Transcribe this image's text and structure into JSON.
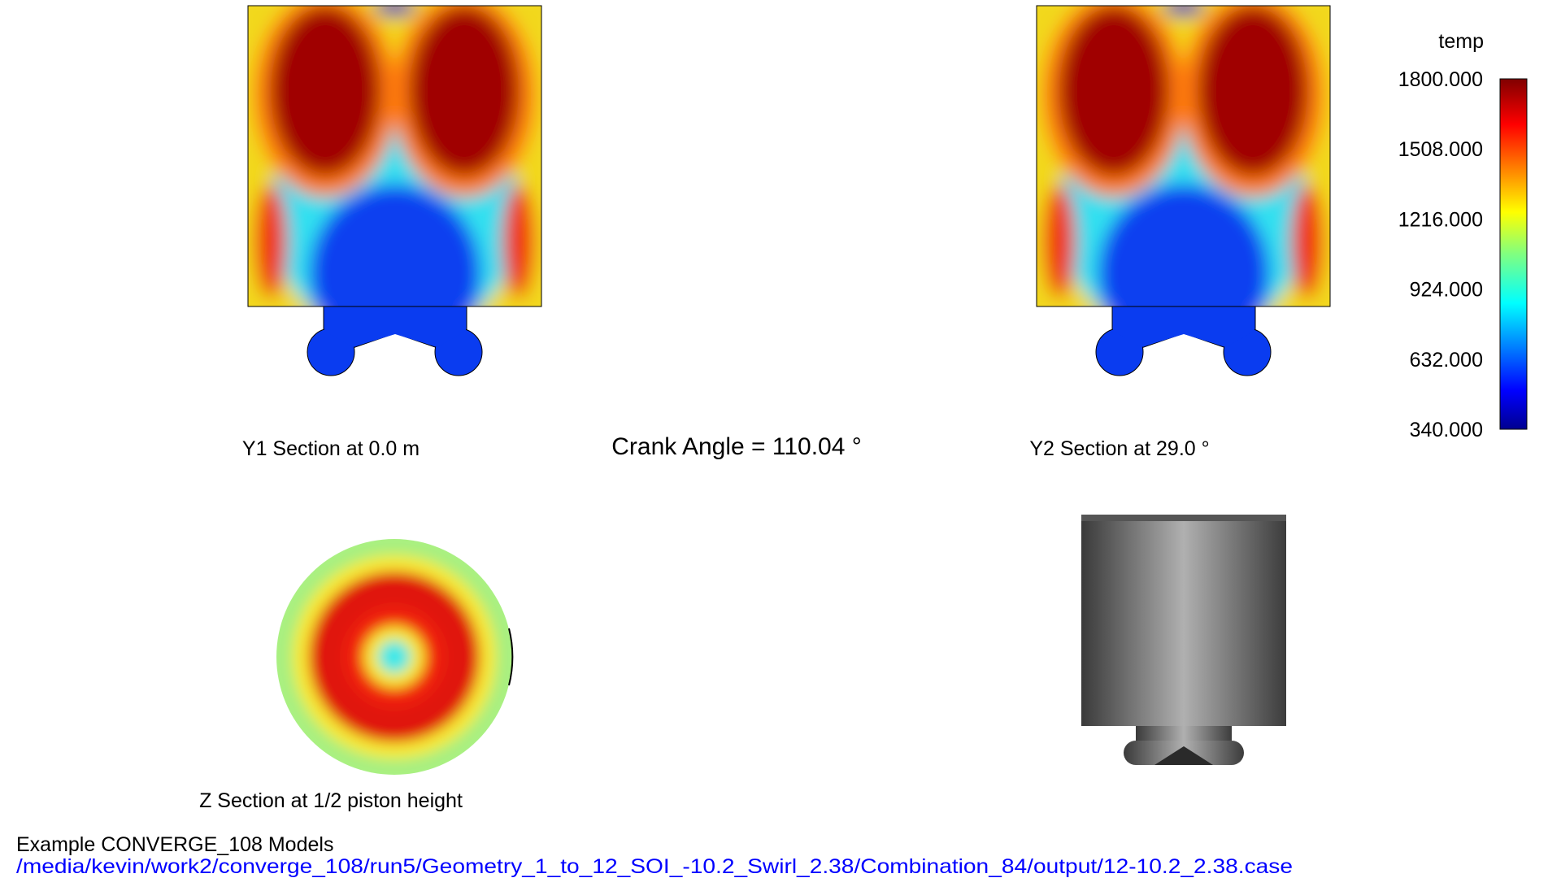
{
  "sections": {
    "y1_label": "Y1 Section at 0.0 m",
    "crank_angle": "Crank Angle = 110.04 °",
    "y2_label": "Y2 Section at 29.0 °",
    "z_label": "Z Section at 1/2 piston height"
  },
  "colorbar": {
    "title": "temp",
    "ticks": [
      "1800.000",
      "1508.000",
      "1216.000",
      "924.000",
      "632.000",
      "340.000"
    ]
  },
  "footer": {
    "title": "Example CONVERGE_108 Models",
    "path": "/media/kevin/work2/converge_108/run5/Geometry_1_to_12_SOI_-10.2_Swirl_2.38/Combination_84/output/12-10.2_2.38.case"
  }
}
